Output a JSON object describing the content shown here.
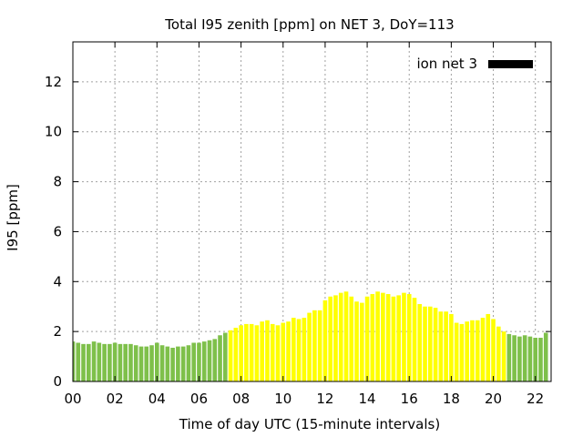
{
  "chart_data": {
    "type": "bar",
    "title": "Total I95 zenith [ppm] on NET 3, DoY=113",
    "xlabel": "Time of day UTC (15-minute intervals)",
    "ylabel": "I95 [ppm]",
    "xlim": [
      0,
      22.75
    ],
    "ylim": [
      0,
      13.6
    ],
    "x_tick_labels": [
      "00",
      "02",
      "04",
      "06",
      "08",
      "10",
      "12",
      "14",
      "16",
      "18",
      "20",
      "22"
    ],
    "x_tick_values": [
      0,
      2,
      4,
      6,
      8,
      10,
      12,
      14,
      16,
      18,
      20,
      22
    ],
    "y_ticks": [
      0,
      2,
      4,
      6,
      8,
      10,
      12
    ],
    "grid": true,
    "legend": {
      "label": "ion net 3",
      "color": "#000000",
      "placement": "top-right"
    },
    "interval_hours": 0.25,
    "colors": {
      "low": "#7ec04a",
      "moderate": "#ffff00"
    },
    "series": [
      {
        "values": [
          1.6,
          1.55,
          1.5,
          1.5,
          1.6,
          1.55,
          1.5,
          1.5,
          1.55,
          1.5,
          1.5,
          1.5,
          1.45,
          1.4,
          1.4,
          1.45,
          1.55,
          1.45,
          1.4,
          1.35,
          1.4,
          1.4,
          1.45,
          1.55,
          1.55,
          1.6,
          1.65,
          1.7,
          1.85,
          1.95,
          2.05,
          2.15,
          2.25,
          2.3,
          2.3,
          2.25,
          2.4,
          2.45,
          2.3,
          2.25,
          2.35,
          2.4,
          2.55,
          2.5,
          2.55,
          2.75,
          2.85,
          2.85,
          3.25,
          3.4,
          3.45,
          3.55,
          3.6,
          3.4,
          3.2,
          3.15,
          3.4,
          3.5,
          3.6,
          3.55,
          3.5,
          3.4,
          3.45,
          3.55,
          3.5,
          3.35,
          3.1,
          3.0,
          3.0,
          2.95,
          2.8,
          2.8,
          2.7,
          2.35,
          2.3,
          2.4,
          2.45,
          2.45,
          2.55,
          2.7,
          2.5,
          2.2,
          2.0,
          1.9,
          1.85,
          1.8,
          1.85,
          1.8,
          1.75,
          1.75,
          1.95
        ],
        "level": [
          "low",
          "low",
          "low",
          "low",
          "low",
          "low",
          "low",
          "low",
          "low",
          "low",
          "low",
          "low",
          "low",
          "low",
          "low",
          "low",
          "low",
          "low",
          "low",
          "low",
          "low",
          "low",
          "low",
          "low",
          "low",
          "low",
          "low",
          "low",
          "low",
          "low",
          "moderate",
          "moderate",
          "moderate",
          "moderate",
          "moderate",
          "moderate",
          "moderate",
          "moderate",
          "moderate",
          "moderate",
          "moderate",
          "moderate",
          "moderate",
          "moderate",
          "moderate",
          "moderate",
          "moderate",
          "moderate",
          "moderate",
          "moderate",
          "moderate",
          "moderate",
          "moderate",
          "moderate",
          "moderate",
          "moderate",
          "moderate",
          "moderate",
          "moderate",
          "moderate",
          "moderate",
          "moderate",
          "moderate",
          "moderate",
          "moderate",
          "moderate",
          "moderate",
          "moderate",
          "moderate",
          "moderate",
          "moderate",
          "moderate",
          "moderate",
          "moderate",
          "moderate",
          "moderate",
          "moderate",
          "moderate",
          "moderate",
          "moderate",
          "moderate",
          "moderate",
          "moderate",
          "low",
          "low",
          "low",
          "low",
          "low",
          "low",
          "low",
          "low"
        ]
      }
    ]
  }
}
